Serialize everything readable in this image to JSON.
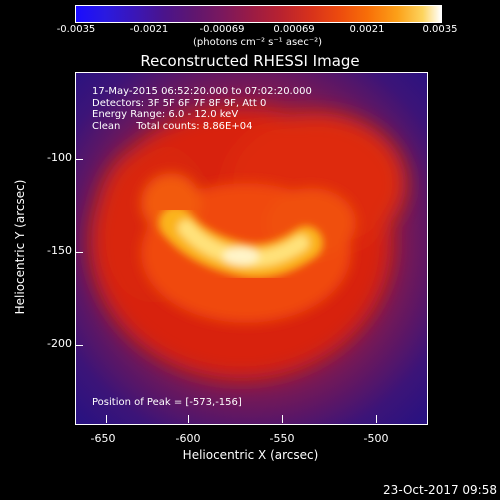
{
  "colorbar": {
    "ticks": [
      "-0.0035",
      "-0.0021",
      "-0.00069",
      "0.00069",
      "0.0021",
      "0.0035"
    ],
    "unit_text": "(photons cm⁻² s⁻¹ asec⁻²)"
  },
  "title": "Reconstructed RHESSI Image",
  "info": {
    "line1": "17-May-2015 06:52:20.000 to 07:02:20.000",
    "line2": "Detectors: 3F 5F 6F 7F 8F 9F, Att 0",
    "line3": "Energy Range: 6.0 - 12.0 keV",
    "line4": "Clean     Total counts: 8.86E+04"
  },
  "peak_text": "Position of Peak = [-573,-156]",
  "x_axis": {
    "label": "Heliocentric X (arcsec)",
    "ticks": [
      "-650",
      "-600",
      "-550",
      "-500"
    ],
    "range": [
      -665,
      -475
    ]
  },
  "y_axis": {
    "label": "Heliocentric Y (arcsec)",
    "ticks": [
      "-100",
      "-150",
      "-200"
    ],
    "range": [
      -250,
      -60
    ]
  },
  "timestamp": "23-Oct-2017 09:58"
}
